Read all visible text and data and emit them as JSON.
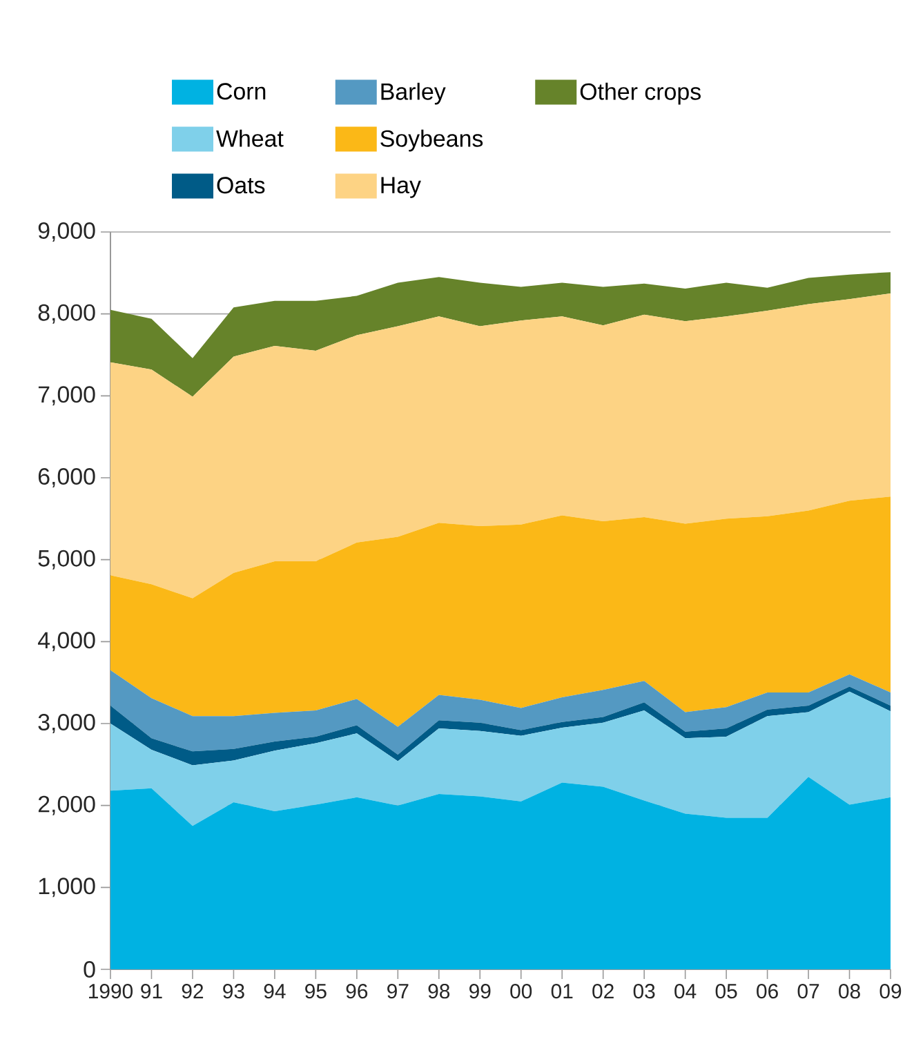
{
  "chart_data": {
    "type": "area",
    "stacked": true,
    "grid": "y",
    "legend": "top",
    "x": [
      1990,
      1991,
      1992,
      1993,
      1994,
      1995,
      1996,
      1997,
      1998,
      1999,
      2000,
      2001,
      2002,
      2003,
      2004,
      2005,
      2006,
      2007,
      2008,
      2009
    ],
    "xlim": [
      1990,
      2009
    ],
    "xticks": [
      1990,
      {
        "value": 1991,
        "label": "91"
      },
      {
        "value": 1992,
        "label": "92"
      },
      {
        "value": 1993,
        "label": "93"
      },
      {
        "value": 1994,
        "label": "94"
      },
      {
        "value": 1995,
        "label": "95"
      },
      {
        "value": 1996,
        "label": "96"
      },
      {
        "value": 1997,
        "label": "97"
      },
      {
        "value": 1998,
        "label": "98"
      },
      {
        "value": 1999,
        "label": "99"
      },
      {
        "value": 2000,
        "label": "00"
      },
      {
        "value": 2001,
        "label": "01"
      },
      {
        "value": 2002,
        "label": "02"
      },
      {
        "value": 2003,
        "label": "03"
      },
      {
        "value": 2004,
        "label": "04"
      },
      {
        "value": 2005,
        "label": "05"
      },
      {
        "value": 2006,
        "label": "06"
      },
      {
        "value": 2007,
        "label": "07"
      },
      {
        "value": 2008,
        "label": "08"
      },
      {
        "value": 2009,
        "label": "09"
      }
    ],
    "ylim": [
      0,
      9000
    ],
    "yticks": [
      0,
      {
        "value": 1000,
        "label": "1,000"
      },
      {
        "value": 2000,
        "label": "2,000"
      },
      {
        "value": 3000,
        "label": "3,000"
      },
      {
        "value": 4000,
        "label": "4,000"
      },
      {
        "value": 5000,
        "label": "5,000"
      },
      {
        "value": 6000,
        "label": "6,000"
      },
      {
        "value": 7000,
        "label": "7,000"
      },
      {
        "value": 8000,
        "label": "8,000"
      },
      {
        "value": 9000,
        "label": "9,000"
      }
    ],
    "series": [
      {
        "name": "Corn",
        "color": "#00b2e2",
        "values": [
          2180,
          2210,
          1750,
          2040,
          1930,
          2010,
          2100,
          2000,
          2140,
          2110,
          2050,
          2280,
          2230,
          2060,
          1900,
          1850,
          1850,
          2350,
          2010,
          2100
        ]
      },
      {
        "name": "Wheat",
        "color": "#7fd0ea",
        "values": [
          820,
          470,
          740,
          510,
          740,
          750,
          780,
          540,
          800,
          800,
          800,
          670,
          780,
          1100,
          920,
          990,
          1240,
          790,
          1380,
          1050
        ]
      },
      {
        "name": "Oats",
        "color": "#005b87",
        "values": [
          220,
          140,
          170,
          140,
          110,
          80,
          100,
          80,
          100,
          100,
          70,
          70,
          70,
          100,
          80,
          100,
          80,
          80,
          60,
          70
        ]
      },
      {
        "name": "Barley",
        "color": "#5499c2",
        "values": [
          430,
          490,
          430,
          400,
          350,
          320,
          320,
          340,
          310,
          280,
          270,
          300,
          330,
          260,
          240,
          260,
          210,
          160,
          150,
          160
        ]
      },
      {
        "name": "Soybeans",
        "color": "#fbb817",
        "values": [
          1160,
          1390,
          1440,
          1750,
          1850,
          1820,
          1910,
          2320,
          2100,
          2120,
          2240,
          2220,
          2060,
          2000,
          2300,
          2300,
          2150,
          2220,
          2120,
          2390
        ]
      },
      {
        "name": "Hay",
        "color": "#fdd384",
        "values": [
          2600,
          2620,
          2460,
          2640,
          2630,
          2570,
          2530,
          2570,
          2520,
          2440,
          2490,
          2430,
          2390,
          2470,
          2470,
          2470,
          2510,
          2520,
          2460,
          2480
        ]
      },
      {
        "name": "Other crops",
        "color": "#66832a",
        "values": [
          640,
          620,
          470,
          600,
          550,
          610,
          480,
          530,
          480,
          530,
          410,
          410,
          470,
          380,
          400,
          410,
          280,
          320,
          300,
          260
        ]
      }
    ]
  }
}
